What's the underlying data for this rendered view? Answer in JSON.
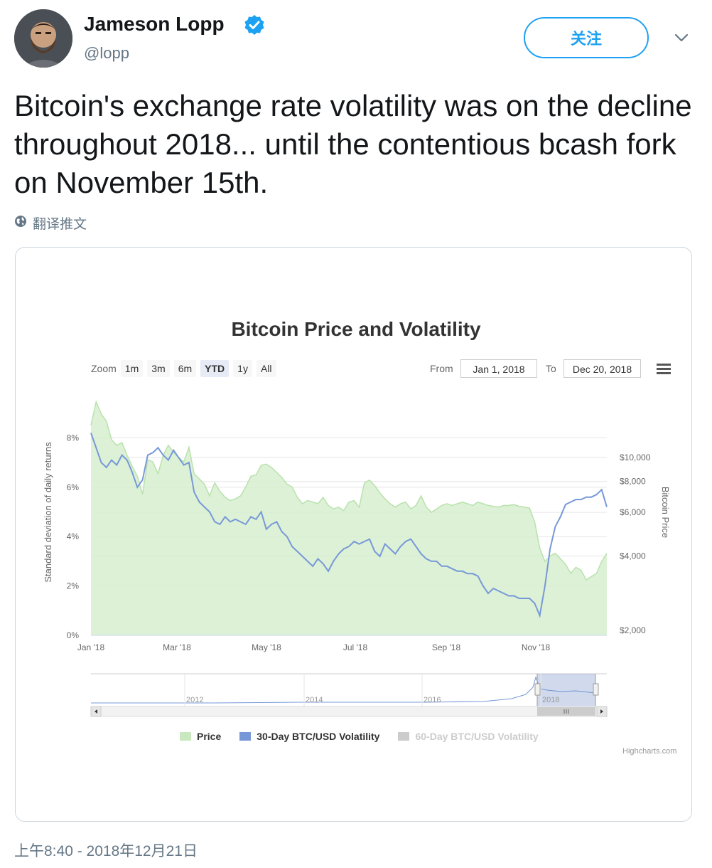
{
  "header": {
    "name": "Jameson Lopp",
    "handle": "@lopp",
    "follow_label": "关注"
  },
  "tweet": {
    "text": "Bitcoin's exchange rate volatility was on the decline throughout 2018... until the contentious bcash fork on November 15th.",
    "translate_label": "翻译推文",
    "timestamp": "上午8:40 - 2018年12月21日"
  },
  "colors": {
    "accent": "#1da1f2",
    "price_fill": "#d6efcf",
    "price_line": "#b9e2ac",
    "volatility_line": "#7798d8",
    "volatility_60": "#cccccc"
  },
  "chart_data": {
    "type": "line",
    "title": "Bitcoin Price and Volatility",
    "zoom": {
      "label": "Zoom",
      "buttons": [
        "1m",
        "3m",
        "6m",
        "YTD",
        "1y",
        "All"
      ],
      "active": "YTD"
    },
    "range": {
      "from_label": "From",
      "from": "Jan 1, 2018",
      "to_label": "To",
      "to": "Dec 20, 2018"
    },
    "x_ticks": [
      "Jan '18",
      "Mar '18",
      "May '18",
      "Jul '18",
      "Sep '18",
      "Nov '18"
    ],
    "y_left": {
      "label": "Standard deviation of daily returns",
      "ticks": [
        "0%",
        "2%",
        "4%",
        "6%",
        "8%"
      ],
      "range": [
        0,
        10
      ]
    },
    "y_right": {
      "label": "Bitcoin Price",
      "ticks": [
        "$2,000",
        "$4,000",
        "$6,000",
        "$8,000",
        "$10,000"
      ]
    },
    "navigator_ticks": [
      "2012",
      "2014",
      "2016",
      "2018"
    ],
    "legend": [
      {
        "name": "Price",
        "color": "#c9e8bf",
        "enabled": true
      },
      {
        "name": "30-Day BTC/USD Volatility",
        "color": "#7798d8",
        "enabled": true
      },
      {
        "name": "60-Day BTC/USD Volatility",
        "color": "#cccccc",
        "enabled": false
      }
    ],
    "credits": "Highcharts.com",
    "series": [
      {
        "name": "Price",
        "x": [
          0,
          0.01,
          0.02,
          0.03,
          0.04,
          0.05,
          0.06,
          0.07,
          0.08,
          0.09,
          0.1,
          0.11,
          0.12,
          0.13,
          0.14,
          0.15,
          0.16,
          0.17,
          0.18,
          0.19,
          0.2,
          0.21,
          0.22,
          0.23,
          0.24,
          0.25,
          0.26,
          0.27,
          0.28,
          0.29,
          0.3,
          0.31,
          0.32,
          0.33,
          0.34,
          0.35,
          0.36,
          0.37,
          0.38,
          0.39,
          0.4,
          0.41,
          0.42,
          0.43,
          0.44,
          0.45,
          0.46,
          0.47,
          0.48,
          0.49,
          0.5,
          0.51,
          0.52,
          0.53,
          0.54,
          0.55,
          0.56,
          0.57,
          0.58,
          0.59,
          0.6,
          0.61,
          0.62,
          0.63,
          0.64,
          0.65,
          0.66,
          0.67,
          0.68,
          0.69,
          0.7,
          0.71,
          0.72,
          0.73,
          0.74,
          0.75,
          0.76,
          0.77,
          0.78,
          0.79,
          0.8,
          0.81,
          0.82,
          0.83,
          0.84,
          0.85,
          0.86,
          0.87,
          0.88,
          0.89,
          0.9,
          0.91,
          0.92,
          0.93,
          0.94,
          0.95,
          0.96,
          0.97,
          0.98,
          0.99,
          1.0
        ],
        "values": [
          13500,
          16800,
          15000,
          14000,
          11800,
          11200,
          11500,
          10200,
          9200,
          8400,
          7100,
          9800,
          9600,
          8600,
          10200,
          11200,
          10500,
          10000,
          9600,
          11000,
          8600,
          8200,
          7800,
          7000,
          7900,
          7300,
          6900,
          6700,
          6800,
          7000,
          7600,
          8400,
          8500,
          9300,
          9400,
          9100,
          8700,
          8300,
          7800,
          7600,
          6900,
          6500,
          6700,
          6600,
          6500,
          6900,
          6400,
          6200,
          6300,
          6100,
          6600,
          6700,
          6300,
          7900,
          8100,
          7700,
          7200,
          6800,
          6500,
          6300,
          6500,
          6600,
          6200,
          6400,
          7000,
          6300,
          6000,
          6200,
          6400,
          6500,
          6400,
          6500,
          6600,
          6500,
          6400,
          6600,
          6500,
          6400,
          6350,
          6300,
          6400,
          6400,
          6450,
          6350,
          6300,
          6250,
          5500,
          4300,
          3800,
          4000,
          4100,
          3900,
          3700,
          3400,
          3600,
          3500,
          3200,
          3300,
          3400,
          3800,
          4100
        ]
      },
      {
        "name": "30-Day BTC/USD Volatility",
        "x": [
          0,
          0.01,
          0.02,
          0.03,
          0.04,
          0.05,
          0.06,
          0.07,
          0.08,
          0.09,
          0.1,
          0.11,
          0.12,
          0.13,
          0.14,
          0.15,
          0.16,
          0.17,
          0.18,
          0.19,
          0.2,
          0.21,
          0.22,
          0.23,
          0.24,
          0.25,
          0.26,
          0.27,
          0.28,
          0.29,
          0.3,
          0.31,
          0.32,
          0.33,
          0.34,
          0.35,
          0.36,
          0.37,
          0.38,
          0.39,
          0.4,
          0.41,
          0.42,
          0.43,
          0.44,
          0.45,
          0.46,
          0.47,
          0.48,
          0.49,
          0.5,
          0.51,
          0.52,
          0.53,
          0.54,
          0.55,
          0.56,
          0.57,
          0.58,
          0.59,
          0.6,
          0.61,
          0.62,
          0.63,
          0.64,
          0.65,
          0.66,
          0.67,
          0.68,
          0.69,
          0.7,
          0.71,
          0.72,
          0.73,
          0.74,
          0.75,
          0.76,
          0.77,
          0.78,
          0.79,
          0.8,
          0.81,
          0.82,
          0.83,
          0.84,
          0.85,
          0.86,
          0.87,
          0.88,
          0.89,
          0.9,
          0.91,
          0.92,
          0.93,
          0.94,
          0.95,
          0.96,
          0.97,
          0.98,
          0.99,
          1.0
        ],
        "values": [
          8.2,
          7.6,
          7.0,
          6.8,
          7.1,
          6.9,
          7.3,
          7.1,
          6.6,
          6.0,
          6.3,
          7.3,
          7.4,
          7.6,
          7.3,
          7.1,
          7.5,
          7.2,
          6.9,
          7.0,
          5.8,
          5.4,
          5.2,
          5.0,
          4.6,
          4.5,
          4.8,
          4.6,
          4.7,
          4.6,
          4.5,
          4.8,
          4.7,
          5.0,
          4.3,
          4.5,
          4.6,
          4.2,
          4.0,
          3.6,
          3.4,
          3.2,
          3.0,
          2.8,
          3.1,
          2.9,
          2.6,
          3.0,
          3.3,
          3.5,
          3.6,
          3.8,
          3.7,
          3.8,
          3.9,
          3.4,
          3.2,
          3.7,
          3.5,
          3.3,
          3.6,
          3.8,
          3.9,
          3.6,
          3.3,
          3.1,
          3.0,
          3.0,
          2.8,
          2.8,
          2.7,
          2.6,
          2.6,
          2.5,
          2.5,
          2.4,
          2.0,
          1.7,
          1.9,
          1.8,
          1.7,
          1.6,
          1.6,
          1.5,
          1.5,
          1.5,
          1.3,
          0.8,
          2.0,
          3.5,
          4.4,
          4.8,
          5.3,
          5.4,
          5.5,
          5.5,
          5.6,
          5.6,
          5.7,
          5.9,
          5.2
        ]
      }
    ]
  }
}
